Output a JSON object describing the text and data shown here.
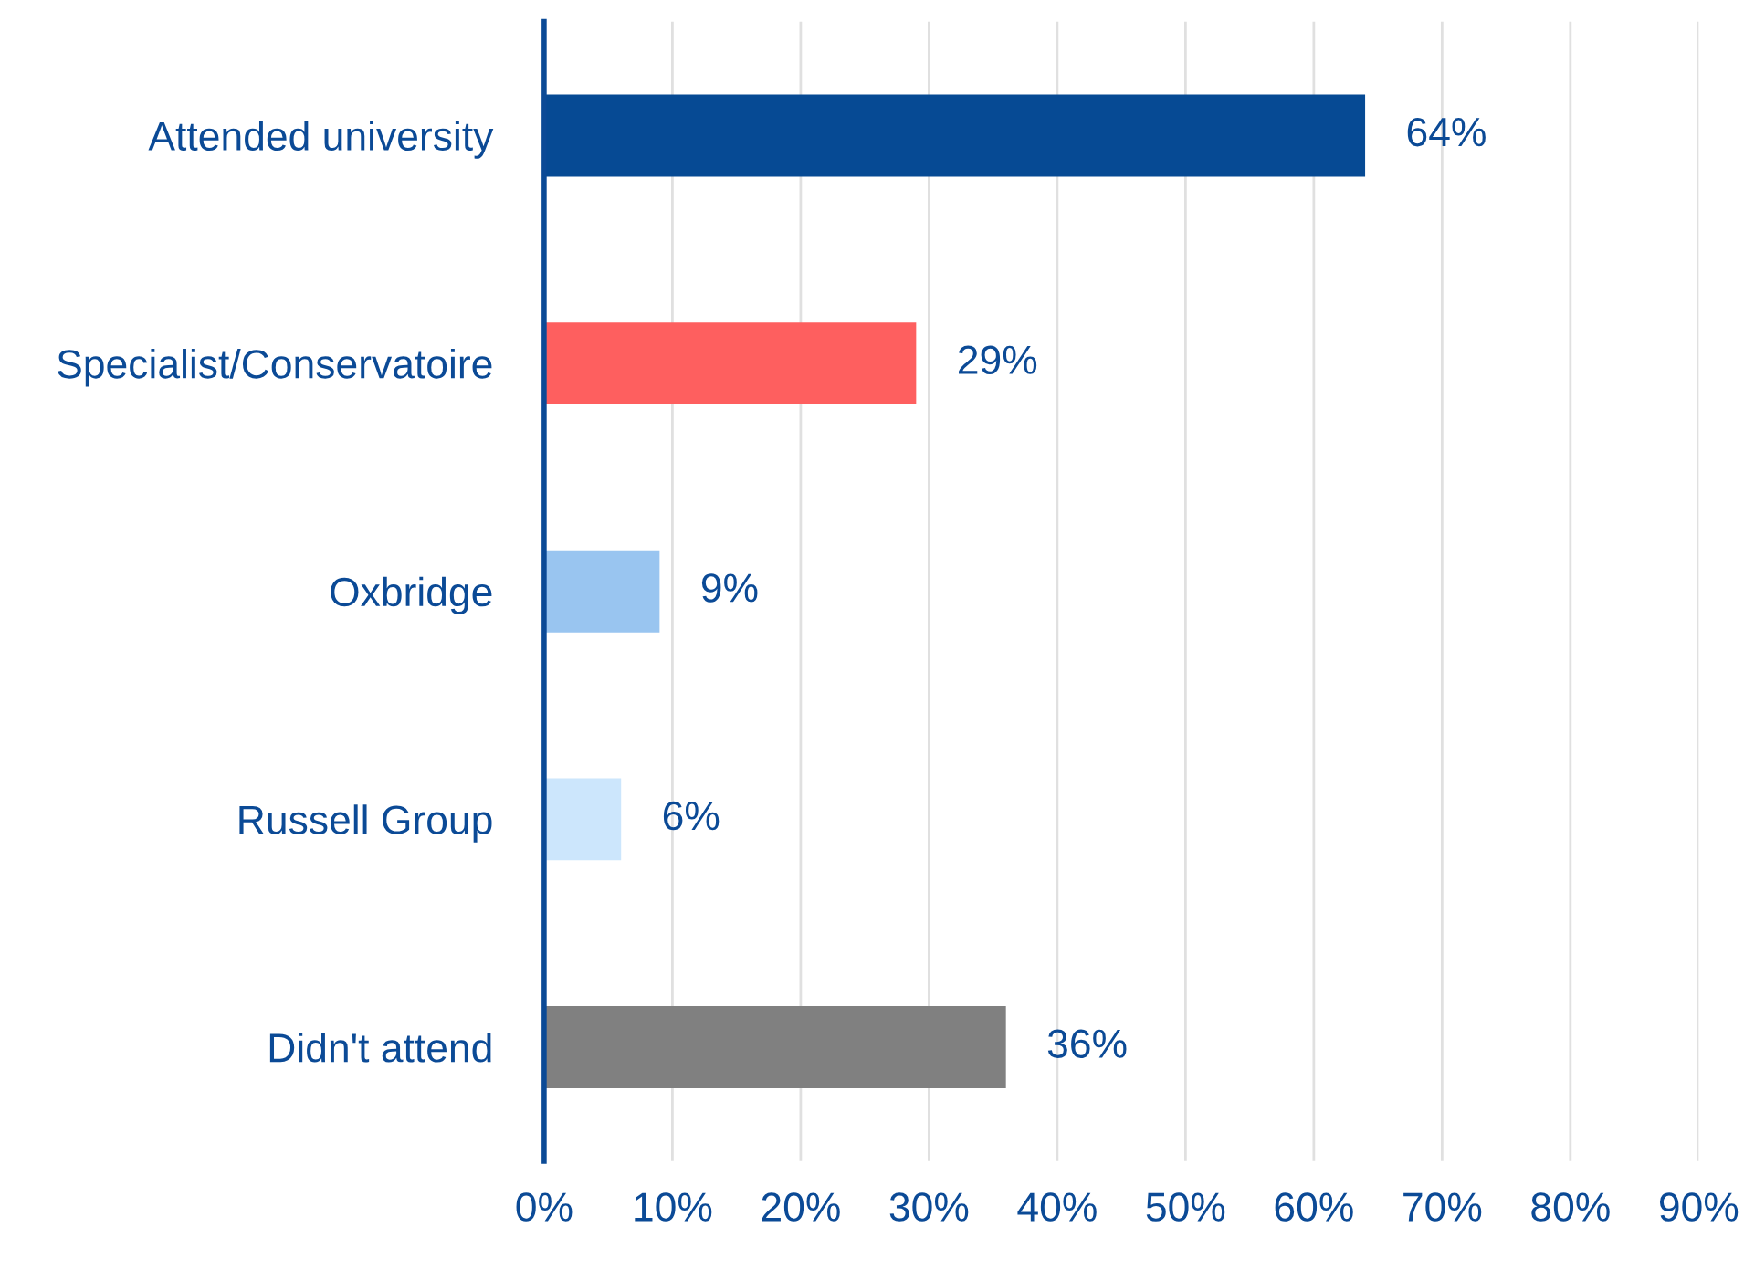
{
  "chart_data": {
    "type": "bar",
    "orientation": "horizontal",
    "categories": [
      "Attended university",
      "Specialist/Conservatoire",
      "Oxbridge",
      "Russell Group",
      "Didn't attend"
    ],
    "values": [
      64,
      29,
      9,
      6,
      36
    ],
    "colors": [
      "#064a94",
      "#fe5f5f",
      "#99c5f0",
      "#cce6fc",
      "#808080"
    ],
    "value_labels": [
      "64%",
      "29%",
      "9%",
      "6%",
      "36%"
    ],
    "xlim": [
      0,
      90
    ],
    "xticks": [
      {
        "value": 0,
        "label": "0%"
      },
      {
        "value": 10,
        "label": "10%"
      },
      {
        "value": 20,
        "label": "20%"
      },
      {
        "value": 30,
        "label": "30%"
      },
      {
        "value": 40,
        "label": "40%"
      },
      {
        "value": 50,
        "label": "50%"
      },
      {
        "value": 60,
        "label": "60%"
      },
      {
        "value": 70,
        "label": "70%"
      },
      {
        "value": 80,
        "label": "80%"
      },
      {
        "value": 90,
        "label": "90%"
      }
    ],
    "grid": "x",
    "legend": false
  }
}
